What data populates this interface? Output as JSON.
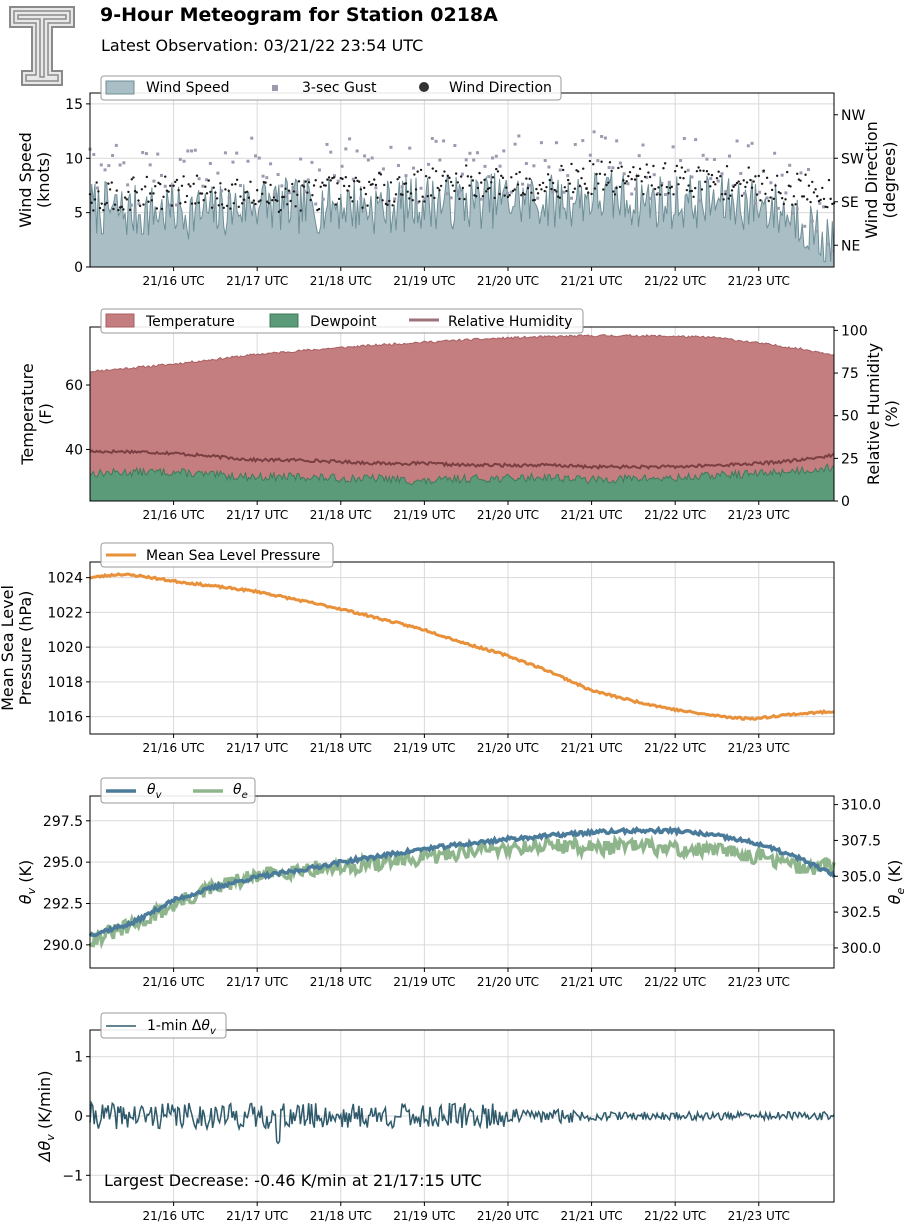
{
  "header": {
    "title": "9-Hour Meteogram for Station 0218A",
    "subtitle": "Latest Observation: 03/21/22 23:54 UTC",
    "logo_letter": "T"
  },
  "colors": {
    "wind_fill": "#a9bec5",
    "wind_line": "#6f8f96",
    "gust": "#9b9bb0",
    "direction": "#1a1a1a",
    "temperature": "#c47e7f",
    "dewpoint": "#5b9b7a",
    "rh": "#7b3f42",
    "pressure": "#e8913a",
    "theta_v": "#4a7b9a",
    "theta_e": "#8fb58c",
    "dtheta": "#2f5a6b",
    "annotation": "#2f5a6b"
  },
  "chart_data": [
    {
      "id": "wind",
      "type": "area",
      "legend": [
        "Wind Speed",
        "3-sec Gust",
        "Wind Direction"
      ],
      "ylabel": [
        "Wind Speed",
        "(knots)"
      ],
      "y2label": [
        "Wind Direction",
        "(degrees)"
      ],
      "ylim": [
        0,
        16
      ],
      "y2lim": [
        0,
        360
      ],
      "yticks": [
        0,
        5,
        10,
        15
      ],
      "y2ticks": [
        {
          "value": 45,
          "label": "NE"
        },
        {
          "value": 135,
          "label": "SE"
        },
        {
          "value": 225,
          "label": "SW"
        },
        {
          "value": 315,
          "label": "NW"
        }
      ],
      "xticks": [
        "21/16 UTC",
        "21/17 UTC",
        "21/18 UTC",
        "21/19 UTC",
        "21/20 UTC",
        "21/21 UTC",
        "21/22 UTC",
        "21/23 UTC"
      ],
      "xlim": [
        15.0,
        23.9
      ],
      "series": [
        {
          "name": "Wind Speed",
          "x": [
            15.0,
            15.5,
            16.0,
            16.5,
            17.0,
            17.5,
            18.0,
            18.5,
            19.0,
            19.5,
            20.0,
            20.5,
            21.0,
            21.5,
            22.0,
            22.5,
            23.0,
            23.5,
            23.9
          ],
          "values": [
            5.5,
            5.0,
            5.2,
            5.0,
            6.0,
            5.5,
            5.8,
            5.5,
            6.0,
            6.0,
            6.2,
            6.0,
            6.5,
            6.2,
            6.0,
            6.0,
            5.8,
            4.5,
            1.5
          ]
        },
        {
          "name": "3-sec Gust",
          "x": [
            15.0,
            15.5,
            16.0,
            16.5,
            17.0,
            17.5,
            18.0,
            18.5,
            19.0,
            19.5,
            20.0,
            20.5,
            21.0,
            21.5,
            22.0,
            22.5,
            23.0,
            23.5,
            23.9
          ],
          "values": [
            8.5,
            8.0,
            8.0,
            8.0,
            9.0,
            8.5,
            9.0,
            8.5,
            9.0,
            9.0,
            9.2,
            9.0,
            9.5,
            9.2,
            9.0,
            9.0,
            8.5,
            7.0,
            3.5
          ]
        },
        {
          "name": "Wind Direction",
          "x": [
            15.0,
            15.5,
            16.0,
            16.5,
            17.0,
            17.5,
            18.0,
            18.5,
            19.0,
            19.5,
            20.0,
            20.5,
            21.0,
            21.5,
            22.0,
            22.5,
            23.0,
            23.5,
            23.9
          ],
          "values": [
            150,
            150,
            155,
            155,
            145,
            150,
            155,
            160,
            170,
            175,
            170,
            175,
            185,
            180,
            180,
            175,
            170,
            160,
            150
          ]
        }
      ]
    },
    {
      "id": "thermo",
      "type": "area",
      "legend": [
        "Temperature",
        "Dewpoint",
        "Relative Humidity"
      ],
      "ylabel": [
        "Temperature",
        "(F)"
      ],
      "y2label": [
        "Relative Humidity",
        "(%)"
      ],
      "ylim": [
        24,
        78
      ],
      "y2lim": [
        0,
        102
      ],
      "yticks": [
        40,
        60
      ],
      "y2ticks": [
        {
          "value": 0,
          "label": "0"
        },
        {
          "value": 25,
          "label": "25"
        },
        {
          "value": 50,
          "label": "50"
        },
        {
          "value": 75,
          "label": "75"
        },
        {
          "value": 100,
          "label": "100"
        }
      ],
      "xticks": [
        "21/16 UTC",
        "21/17 UTC",
        "21/18 UTC",
        "21/19 UTC",
        "21/20 UTC",
        "21/21 UTC",
        "21/22 UTC",
        "21/23 UTC"
      ],
      "xlim": [
        15.0,
        23.9
      ],
      "series": [
        {
          "name": "Temperature",
          "x": [
            15.0,
            15.5,
            16.0,
            16.5,
            17.0,
            17.5,
            18.0,
            18.5,
            19.0,
            19.5,
            20.0,
            20.5,
            21.0,
            21.5,
            22.0,
            22.5,
            23.0,
            23.5,
            23.9
          ],
          "values": [
            64.2,
            65.3,
            66.5,
            68.0,
            69.5,
            70.6,
            71.6,
            72.5,
            73.3,
            74.0,
            74.6,
            75.0,
            75.3,
            75.3,
            75.1,
            74.7,
            73.0,
            71.2,
            69.5
          ]
        },
        {
          "name": "Dewpoint",
          "x": [
            15.0,
            15.5,
            16.0,
            16.5,
            17.0,
            17.5,
            18.0,
            18.5,
            19.0,
            19.5,
            20.0,
            20.5,
            21.0,
            21.5,
            22.0,
            22.5,
            23.0,
            23.5,
            23.9
          ],
          "values": [
            32.5,
            33.0,
            33.0,
            32.0,
            31.5,
            31.5,
            31.0,
            31.0,
            30.0,
            31.0,
            31.0,
            31.5,
            30.5,
            31.0,
            31.0,
            32.0,
            32.5,
            33.5,
            34.5
          ]
        },
        {
          "name": "Relative Humidity",
          "x": [
            15.0,
            15.5,
            16.0,
            16.5,
            17.0,
            17.5,
            18.0,
            18.5,
            19.0,
            19.5,
            20.0,
            20.5,
            21.0,
            21.5,
            22.0,
            22.5,
            23.0,
            23.5,
            23.9
          ],
          "values": [
            29,
            29,
            28,
            26,
            24,
            24,
            23,
            22,
            22,
            21,
            21,
            21,
            20,
            20,
            20,
            21,
            22,
            24,
            27
          ]
        }
      ]
    },
    {
      "id": "pressure",
      "type": "line",
      "legend": [
        "Mean Sea Level Pressure"
      ],
      "ylabel": [
        "Mean Sea Level",
        "Pressure (hPa)"
      ],
      "ylim": [
        1015.0,
        1024.9
      ],
      "yticks": [
        1016,
        1018,
        1020,
        1022,
        1024
      ],
      "xticks": [
        "21/16 UTC",
        "21/17 UTC",
        "21/18 UTC",
        "21/19 UTC",
        "21/20 UTC",
        "21/21 UTC",
        "21/22 UTC",
        "21/23 UTC"
      ],
      "xlim": [
        15.0,
        23.9
      ],
      "series": [
        {
          "name": "Mean Sea Level Pressure",
          "x": [
            15.0,
            15.35,
            15.6,
            16.0,
            16.5,
            17.0,
            17.5,
            18.0,
            18.5,
            19.0,
            19.5,
            20.0,
            20.5,
            21.0,
            21.5,
            22.0,
            22.4,
            22.8,
            23.0,
            23.3,
            23.6,
            23.9
          ],
          "values": [
            1024.0,
            1024.2,
            1024.1,
            1023.8,
            1023.5,
            1023.2,
            1022.7,
            1022.2,
            1021.6,
            1021.0,
            1020.2,
            1019.5,
            1018.6,
            1017.5,
            1016.9,
            1016.4,
            1016.1,
            1015.9,
            1015.9,
            1016.1,
            1016.2,
            1016.3
          ]
        }
      ]
    },
    {
      "id": "theta",
      "type": "line",
      "legend": [
        "θv",
        "θe"
      ],
      "ylabel": [
        "θv (K)"
      ],
      "y2label": [
        "θe (K)"
      ],
      "ylim": [
        288.6,
        299.0
      ],
      "y2lim": [
        298.6,
        310.6
      ],
      "yticks": [
        290.0,
        292.5,
        295.0,
        297.5
      ],
      "y2ticks": [
        {
          "value": 300,
          "label": "300.0"
        },
        {
          "value": 302.5,
          "label": "302.5"
        },
        {
          "value": 305,
          "label": "305.0"
        },
        {
          "value": 307.5,
          "label": "307.5"
        },
        {
          "value": 310,
          "label": "310.0"
        }
      ],
      "xticks": [
        "21/16 UTC",
        "21/17 UTC",
        "21/18 UTC",
        "21/19 UTC",
        "21/20 UTC",
        "21/21 UTC",
        "21/22 UTC",
        "21/23 UTC"
      ],
      "xlim": [
        15.0,
        23.9
      ],
      "series": [
        {
          "name": "θv",
          "x": [
            15.0,
            15.5,
            16.0,
            16.5,
            17.0,
            17.5,
            18.0,
            18.5,
            19.0,
            19.5,
            20.0,
            20.5,
            21.0,
            21.5,
            22.0,
            22.5,
            23.0,
            23.5,
            23.9
          ],
          "values": [
            290.6,
            291.3,
            292.7,
            293.5,
            294.1,
            294.5,
            295.0,
            295.4,
            295.8,
            296.1,
            296.4,
            296.6,
            296.8,
            296.9,
            296.9,
            296.6,
            296.1,
            295.2,
            294.2
          ]
        },
        {
          "name": "θe",
          "x": [
            15.0,
            15.5,
            16.0,
            16.5,
            17.0,
            17.5,
            18.0,
            18.5,
            19.0,
            19.5,
            20.0,
            20.5,
            21.0,
            21.5,
            22.0,
            22.5,
            23.0,
            23.5,
            23.9
          ],
          "values": [
            300.6,
            301.5,
            303.0,
            304.2,
            305.0,
            305.5,
            305.6,
            306.0,
            306.2,
            306.8,
            307.0,
            307.2,
            307.0,
            307.1,
            306.9,
            306.8,
            306.4,
            305.6,
            305.7
          ]
        }
      ]
    },
    {
      "id": "dtheta",
      "type": "line",
      "legend": [
        "1-min Δθv"
      ],
      "ylabel": [
        "Δθv (K/min)"
      ],
      "ylim": [
        -1.45,
        1.45
      ],
      "yticks": [
        -1,
        0,
        1
      ],
      "xticks": [
        "21/16 UTC",
        "21/17 UTC",
        "21/18 UTC",
        "21/19 UTC",
        "21/20 UTC",
        "21/21 UTC",
        "21/22 UTC",
        "21/23 UTC"
      ],
      "xlim": [
        15.0,
        23.9
      ],
      "annotation": "Largest Decrease: -0.46 K/min at 21/17:15 UTC",
      "series": [
        {
          "name": "1-min Δθv",
          "x": [
            15.0,
            15.5,
            16.0,
            16.5,
            17.0,
            17.25,
            17.5,
            18.0,
            18.5,
            19.0,
            19.5,
            20.0,
            20.5,
            21.0,
            21.5,
            22.0,
            22.5,
            23.0,
            23.5,
            23.9
          ],
          "values": [
            0.0,
            0.02,
            -0.05,
            0.05,
            0.0,
            -0.46,
            0.02,
            0.0,
            0.05,
            0.0,
            -0.05,
            0.02,
            0.0,
            0.02,
            -0.02,
            0.0,
            0.0,
            -0.02,
            0.0,
            0.0
          ]
        }
      ]
    }
  ]
}
